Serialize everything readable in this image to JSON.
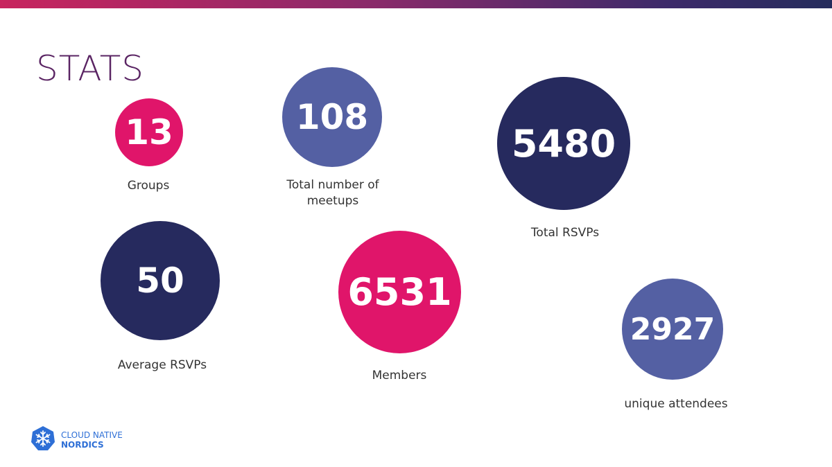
{
  "title": "STATS",
  "colors": {
    "pink": "#e0156a",
    "periwinkle": "#5460a3",
    "navy": "#262a5e",
    "title": "#5a2463"
  },
  "stats": [
    {
      "value": "13",
      "label": "Groups",
      "color": "pink"
    },
    {
      "value": "108",
      "label_line1": "Total number of",
      "label_line2": "meetups",
      "color": "periwinkle"
    },
    {
      "value": "5480",
      "label": "Total RSVPs",
      "color": "navy"
    },
    {
      "value": "50",
      "label": "Average RSVPs",
      "color": "navy"
    },
    {
      "value": "6531",
      "label": "Members",
      "color": "pink"
    },
    {
      "value": "2927",
      "label": "unique attendees",
      "color": "periwinkle"
    }
  ],
  "logo": {
    "line1": "CLOUD NATIVE",
    "line2": "NORDICS",
    "icon": "snowflake-hexagon-icon"
  }
}
